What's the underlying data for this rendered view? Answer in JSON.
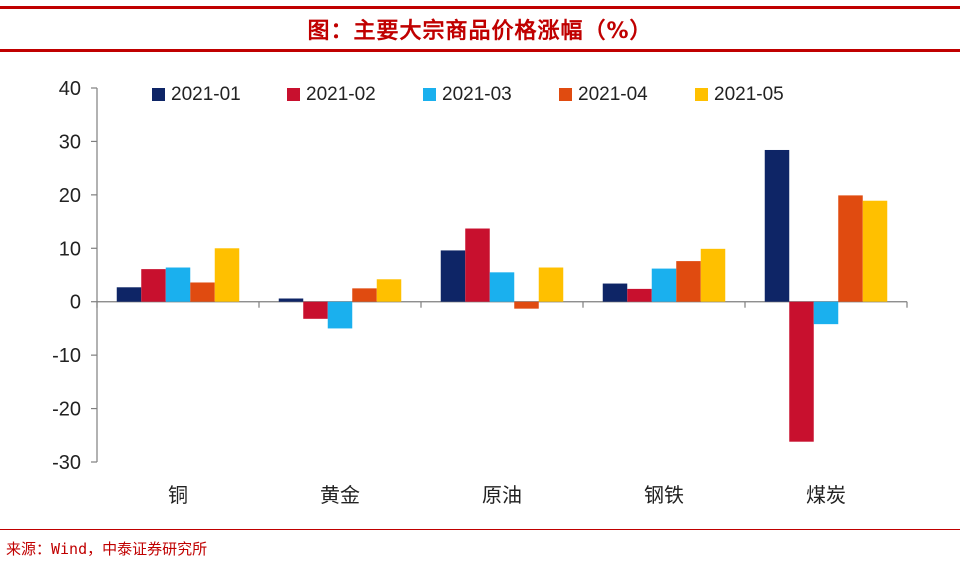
{
  "header": {
    "title": "图：主要大宗商品价格涨幅（%）"
  },
  "footer": {
    "source": "来源：Wind，中泰证券研究所"
  },
  "chart_data": {
    "type": "bar",
    "title": "图：主要大宗商品价格涨幅（%）",
    "xlabel": "",
    "ylabel": "",
    "ylim": [
      -30,
      40
    ],
    "yticks": [
      40,
      30,
      20,
      10,
      0,
      -10,
      -20,
      -30
    ],
    "grid": false,
    "legend_position": "top",
    "categories": [
      "铜",
      "黄金",
      "原油",
      "钢铁",
      "煤炭"
    ],
    "series": [
      {
        "name": "2021-01",
        "color": "#0e2566",
        "values": [
          2.7,
          0.6,
          9.6,
          3.4,
          28.4
        ]
      },
      {
        "name": "2021-02",
        "color": "#c8102e",
        "values": [
          6.1,
          -3.2,
          13.7,
          2.4,
          -26.2
        ]
      },
      {
        "name": "2021-03",
        "color": "#1ab0ee",
        "values": [
          6.4,
          -5.0,
          5.5,
          6.2,
          -4.2
        ]
      },
      {
        "name": "2021-04",
        "color": "#e04b10",
        "values": [
          3.6,
          2.5,
          -1.3,
          7.6,
          19.9
        ]
      },
      {
        "name": "2021-05",
        "color": "#ffc000",
        "values": [
          10.0,
          4.2,
          6.4,
          9.9,
          18.9
        ]
      }
    ]
  }
}
